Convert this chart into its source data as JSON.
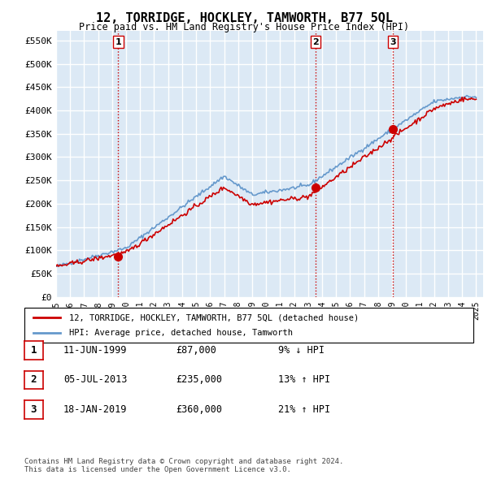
{
  "title": "12, TORRIDGE, HOCKLEY, TAMWORTH, B77 5QL",
  "subtitle": "Price paid vs. HM Land Registry's House Price Index (HPI)",
  "ylabel_ticks": [
    "£0",
    "£50K",
    "£100K",
    "£150K",
    "£200K",
    "£250K",
    "£300K",
    "£350K",
    "£400K",
    "£450K",
    "£500K",
    "£550K"
  ],
  "ytick_vals": [
    0,
    50000,
    100000,
    150000,
    200000,
    250000,
    300000,
    350000,
    400000,
    450000,
    500000,
    550000
  ],
  "ylim": [
    0,
    570000
  ],
  "xlim_start": 1995.0,
  "xlim_end": 2025.5,
  "purchases": [
    {
      "label": "1",
      "date_num": 1999.44,
      "price": 87000
    },
    {
      "label": "2",
      "date_num": 2013.51,
      "price": 235000
    },
    {
      "label": "3",
      "date_num": 2019.05,
      "price": 360000
    }
  ],
  "vline_color": "#cc0000",
  "vline_style": "dotted",
  "purchase_marker_color": "#cc0000",
  "hpi_line_color": "#6699cc",
  "price_line_color": "#cc0000",
  "legend_label_price": "12, TORRIDGE, HOCKLEY, TAMWORTH, B77 5QL (detached house)",
  "legend_label_hpi": "HPI: Average price, detached house, Tamworth",
  "table_rows": [
    {
      "num": "1",
      "date": "11-JUN-1999",
      "price": "£87,000",
      "pct": "9% ↓ HPI"
    },
    {
      "num": "2",
      "date": "05-JUL-2013",
      "price": "£235,000",
      "pct": "13% ↑ HPI"
    },
    {
      "num": "3",
      "date": "18-JAN-2019",
      "price": "£360,000",
      "pct": "21% ↑ HPI"
    }
  ],
  "footer": "Contains HM Land Registry data © Crown copyright and database right 2024.\nThis data is licensed under the Open Government Licence v3.0.",
  "background_color": "#dce9f5",
  "plot_bg_color": "#dce9f5",
  "outer_bg_color": "#ffffff",
  "grid_color": "#ffffff",
  "xtick_years": [
    1995,
    1996,
    1997,
    1998,
    1999,
    2000,
    2001,
    2002,
    2003,
    2004,
    2005,
    2006,
    2007,
    2008,
    2009,
    2010,
    2011,
    2012,
    2013,
    2014,
    2015,
    2016,
    2017,
    2018,
    2019,
    2020,
    2021,
    2022,
    2023,
    2024,
    2025
  ]
}
